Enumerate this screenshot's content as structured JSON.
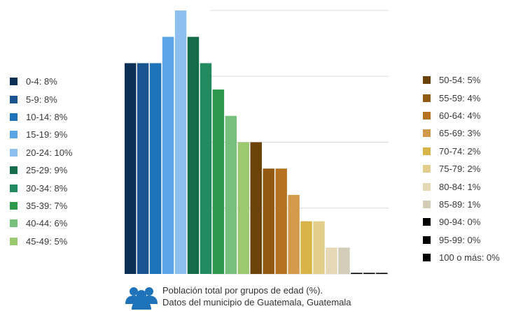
{
  "chart_data": {
    "type": "bar",
    "categories": [
      "0-4",
      "5-9",
      "10-14",
      "15-19",
      "20-24",
      "25-29",
      "30-34",
      "35-39",
      "40-44",
      "45-49",
      "50-54",
      "55-59",
      "60-64",
      "65-69",
      "70-74",
      "75-79",
      "80-84",
      "85-89",
      "90-94",
      "95-99",
      "100 o más"
    ],
    "values": [
      8,
      8,
      8,
      9,
      10,
      9,
      8,
      7,
      6,
      5,
      5,
      4,
      4,
      3,
      2,
      2,
      1,
      1,
      0,
      0,
      0
    ],
    "colors": [
      "#0c2f55",
      "#1a5591",
      "#1f73b8",
      "#5aa5e6",
      "#8dc0ee",
      "#146c4b",
      "#23895e",
      "#2e984c",
      "#76bf7c",
      "#9bc96f",
      "#6b4308",
      "#925a10",
      "#b57220",
      "#d39a4c",
      "#d8b347",
      "#e3cf8b",
      "#e4d9b4",
      "#d3cdb8",
      "#000000",
      "#000000",
      "#000000"
    ],
    "ylim": [
      0,
      10
    ],
    "grid": true,
    "legend_placement": "left-and-right"
  },
  "legend": {
    "left": [
      {
        "label": "0-4: 8%",
        "color": "#0c2f55"
      },
      {
        "label": "5-9: 8%",
        "color": "#1a5591"
      },
      {
        "label": "10-14: 8%",
        "color": "#1f73b8"
      },
      {
        "label": "15-19: 9%",
        "color": "#5aa5e6"
      },
      {
        "label": "20-24: 10%",
        "color": "#8dc0ee"
      },
      {
        "label": "25-29: 9%",
        "color": "#146c4b"
      },
      {
        "label": "30-34: 8%",
        "color": "#23895e"
      },
      {
        "label": "35-39: 7%",
        "color": "#2e984c"
      },
      {
        "label": "40-44: 6%",
        "color": "#76bf7c"
      },
      {
        "label": "45-49: 5%",
        "color": "#9bc96f"
      }
    ],
    "right": [
      {
        "label": "50-54: 5%",
        "color": "#6b4308"
      },
      {
        "label": "55-59: 4%",
        "color": "#925a10"
      },
      {
        "label": "60-64: 4%",
        "color": "#b57220"
      },
      {
        "label": "65-69: 3%",
        "color": "#d39a4c"
      },
      {
        "label": "70-74: 2%",
        "color": "#d8b347"
      },
      {
        "label": "75-79: 2%",
        "color": "#e3cf8b"
      },
      {
        "label": "80-84: 1%",
        "color": "#e4d9b4"
      },
      {
        "label": "85-89: 1%",
        "color": "#d3cdb8"
      },
      {
        "label": "90-94: 0%",
        "color": "#000000"
      },
      {
        "label": "95-99: 0%",
        "color": "#000000"
      },
      {
        "label": "100 o más: 0%",
        "color": "#000000"
      }
    ]
  },
  "caption": {
    "icon": "people-group-icon",
    "icon_color": "#1f73b8",
    "line1": "Población total por grupos de edad (%).",
    "line2": "Datos del municipio de Guatemala, Guatemala"
  }
}
